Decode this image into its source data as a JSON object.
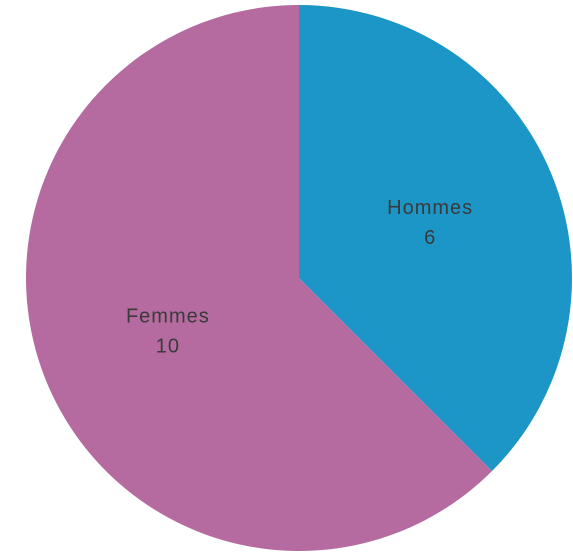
{
  "chart_data": {
    "type": "pie",
    "categories": [
      "Hommes",
      "Femmes"
    ],
    "values": [
      6,
      10
    ],
    "colors": [
      "#1c96c6",
      "#b56b9f"
    ]
  }
}
